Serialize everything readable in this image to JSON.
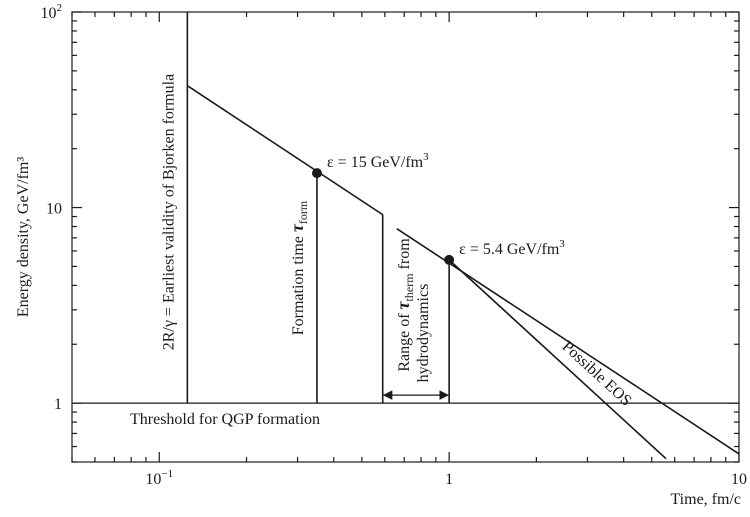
{
  "chart_data": {
    "type": "line",
    "xlabel": "Time, fm/c",
    "ylabel": "Energy density, GeV/fm³",
    "xscale": "log",
    "yscale": "log",
    "xlim": [
      0.05,
      10
    ],
    "ylim": [
      0.5,
      100
    ],
    "x_ticks": [
      {
        "value": 0.1,
        "label": "10",
        "sup": "−1"
      },
      {
        "value": 1,
        "label": "1",
        "sup": ""
      },
      {
        "value": 10,
        "label": "10",
        "sup": ""
      }
    ],
    "y_ticks": [
      {
        "value": 1,
        "label": "1",
        "sup": ""
      },
      {
        "value": 10,
        "label": "10",
        "sup": ""
      },
      {
        "value": 100,
        "label": "10",
        "sup": "2"
      }
    ],
    "grid": false,
    "series": [
      {
        "points": [
          [
            0.125,
            42
          ],
          [
            0.59,
            9.2
          ]
        ]
      },
      {
        "points": [
          [
            0.66,
            7.8
          ],
          [
            10,
            0.55
          ]
        ]
      },
      {
        "points": [
          [
            1,
            5.4
          ],
          [
            5.6,
            0.52
          ]
        ]
      }
    ],
    "reference_lines": [
      {
        "orientation": "horizontal",
        "value": 1,
        "label": "Threshold for QGP formation"
      },
      {
        "orientation": "vertical",
        "value": 0.125,
        "label": "2R/γ = Earliest validity of Bjorken formula"
      },
      {
        "orientation": "vertical",
        "value": 0.35,
        "label_main": "Formation time ",
        "label_tau": "τ",
        "label_sub": "form"
      },
      {
        "orientation": "vertical",
        "value": 0.59
      },
      {
        "orientation": "vertical",
        "value": 1
      }
    ],
    "points": [
      {
        "x": 0.35,
        "y": 15,
        "label": "ε = 15 GeV/fm",
        "sup": "3"
      },
      {
        "x": 1,
        "y": 5.4,
        "label": "ε = 5.4 GeV/fm",
        "sup": "3"
      }
    ],
    "annotations": {
      "range_line1_pre": "Range of ",
      "range_line1_tau": "τ",
      "range_line1_sub": "therm",
      "range_line1_post": " from",
      "range_line2": "hydrodynamics",
      "range_from": 0.59,
      "range_to": 1,
      "possible_eos": "Possible EOS"
    }
  }
}
